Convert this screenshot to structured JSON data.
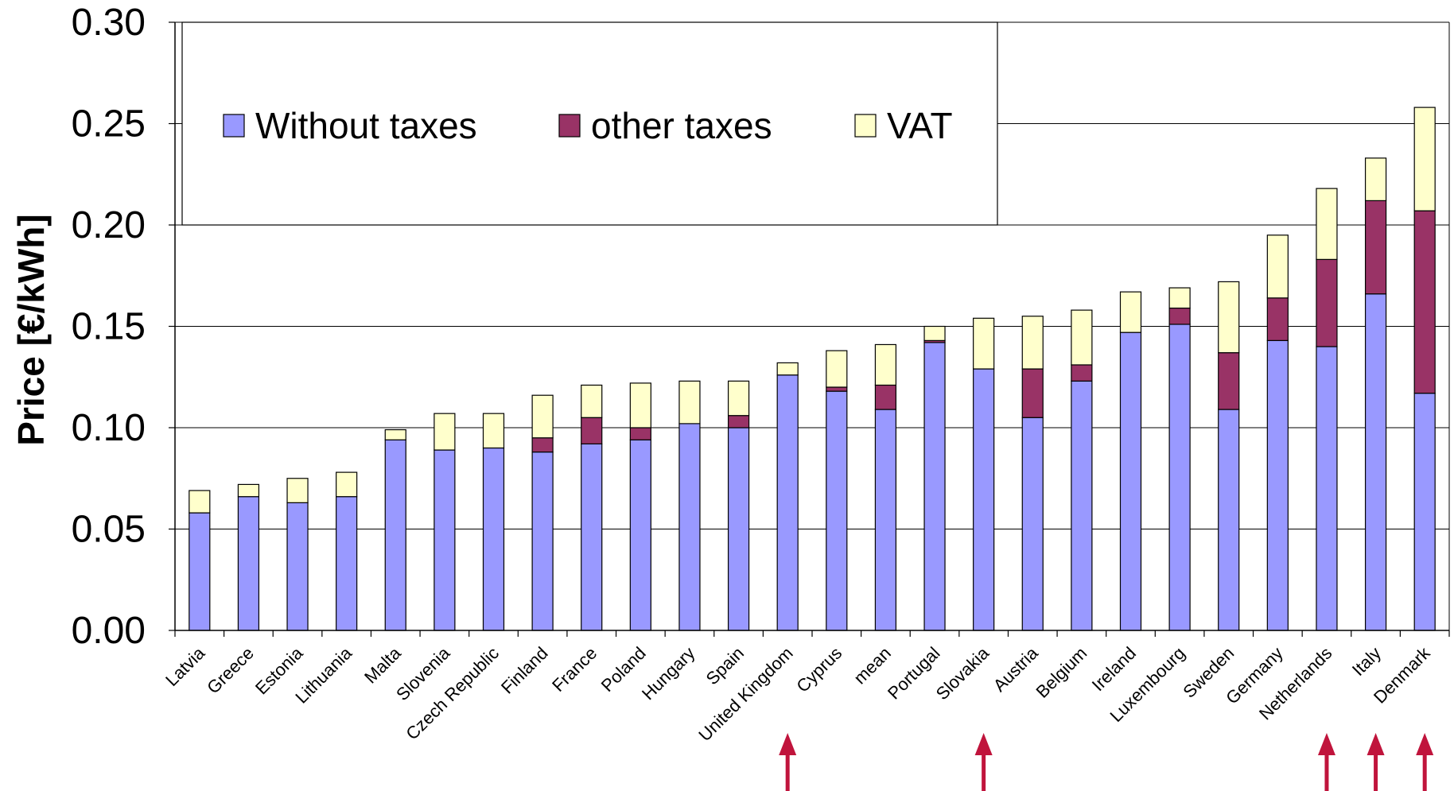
{
  "chart_data": {
    "type": "bar",
    "stacked": true,
    "ylabel": "Price [€/kWh]",
    "ylim": [
      0,
      0.3
    ],
    "yticks": [
      "0.00",
      "0.05",
      "0.10",
      "0.15",
      "0.20",
      "0.25",
      "0.30"
    ],
    "grid": "horizontal",
    "legend_position": "top-left",
    "categories": [
      "Latvia",
      "Greece",
      "Estonia",
      "Lithuania",
      "Malta",
      "Slovenia",
      "Czech Republic",
      "Finland",
      "France",
      "Poland",
      "Hungary",
      "Spain",
      "United Kingdom",
      "Cyprus",
      "mean",
      "Portugal",
      "Slovakia",
      "Austria",
      "Belgium",
      "Ireland",
      "Luxembourg",
      "Sweden",
      "Germany",
      "Netherlands",
      "Italy",
      "Denmark"
    ],
    "series": [
      {
        "name": "Without taxes",
        "color": "#9999ff",
        "values": [
          0.058,
          0.066,
          0.063,
          0.066,
          0.094,
          0.089,
          0.09,
          0.088,
          0.092,
          0.094,
          0.102,
          0.1,
          0.126,
          0.118,
          0.109,
          0.142,
          0.129,
          0.105,
          0.123,
          0.147,
          0.151,
          0.109,
          0.143,
          0.14,
          0.166,
          0.117
        ]
      },
      {
        "name": "other taxes",
        "color": "#993366",
        "values": [
          0,
          0,
          0,
          0,
          0,
          0,
          0,
          0.007,
          0.013,
          0.006,
          0,
          0.006,
          0,
          0.002,
          0.012,
          0.001,
          0,
          0.024,
          0.008,
          0,
          0.008,
          0.028,
          0.021,
          0.043,
          0.046,
          0.09
        ]
      },
      {
        "name": "VAT",
        "color": "#ffffcc",
        "values": [
          0.011,
          0.006,
          0.012,
          0.012,
          0.005,
          0.018,
          0.017,
          0.021,
          0.016,
          0.022,
          0.021,
          0.017,
          0.006,
          0.018,
          0.02,
          0.007,
          0.025,
          0.026,
          0.027,
          0.02,
          0.01,
          0.035,
          0.031,
          0.035,
          0.021,
          0.051
        ]
      }
    ],
    "annotations": {
      "arrow_color": "#c0143c",
      "arrow_categories": [
        "United Kingdom",
        "Slovakia",
        "Netherlands",
        "Italy",
        "Denmark"
      ]
    }
  }
}
